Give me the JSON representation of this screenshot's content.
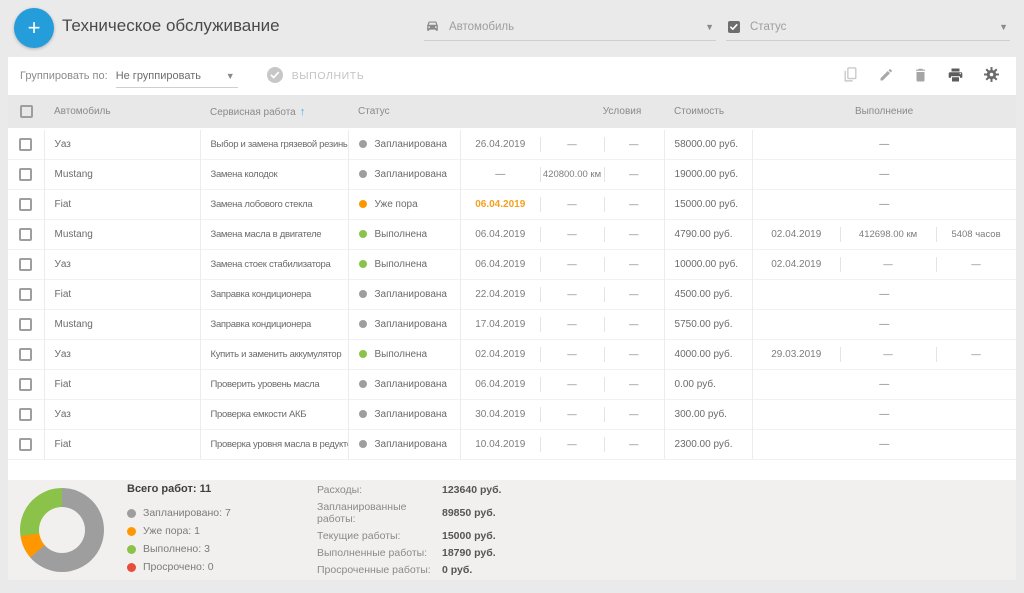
{
  "colors": {
    "accent_blue": "#259ddb",
    "sort_arrow_blue": "#42aee3",
    "status_dots": {
      "planned": "#9e9e9e",
      "due": "#ff9800",
      "done": "#8bc34a",
      "overdue": "#e74c3c"
    },
    "due_date_text": "#f5a01e",
    "footer_bg": "#f1f0ef"
  },
  "header": {
    "title": "Техническое обслуживание",
    "add_icon": "+",
    "filters": {
      "vehicle_placeholder": "Автомобиль",
      "status_placeholder": "Статус"
    }
  },
  "toolbar": {
    "group_by_label": "Группировать по:",
    "group_by_value": "Не группировать",
    "execute_label": "ВЫПОЛНИТЬ",
    "action_icons": [
      "copy-icon",
      "edit-pencil-icon",
      "delete-trash-icon",
      "print-icon",
      "settings-gear-icon"
    ]
  },
  "table": {
    "empty_value": "—",
    "headers": {
      "vehicle": "Автомобиль",
      "service_work": "Сервисная работа",
      "sort_icon": "↑",
      "status": "Статус",
      "conditions": "Условия",
      "cost": "Стоимость",
      "execution": "Выполнение"
    },
    "rows": [
      {
        "vehicle": "Уаз",
        "work": "Выбор и замена грязевой резины",
        "status": "Запланирована",
        "status_key": "planned",
        "cond_date": "26.04.2019",
        "cond_date_due": false,
        "cond_km": "—",
        "cond_hours": "—",
        "cost": "58000.00 руб.",
        "exec": null
      },
      {
        "vehicle": "Mustang",
        "work": "Замена колодок",
        "status": "Запланирована",
        "status_key": "planned",
        "cond_date": "—",
        "cond_date_due": false,
        "cond_km": "420800.00 км",
        "cond_hours": "—",
        "cost": "19000.00 руб.",
        "exec": null
      },
      {
        "vehicle": "Fiat",
        "work": "Замена лобового стекла",
        "status": "Уже пора",
        "status_key": "due",
        "cond_date": "06.04.2019",
        "cond_date_due": true,
        "cond_km": "—",
        "cond_hours": "—",
        "cost": "15000.00 руб.",
        "exec": null
      },
      {
        "vehicle": "Mustang",
        "work": "Замена масла в двигателе",
        "status": "Выполнена",
        "status_key": "done",
        "cond_date": "06.04.2019",
        "cond_date_due": false,
        "cond_km": "—",
        "cond_hours": "—",
        "cost": "4790.00 руб.",
        "exec": {
          "date": "02.04.2019",
          "km": "412698.00 км",
          "hours": "5408 часов"
        }
      },
      {
        "vehicle": "Уаз",
        "work": "Замена стоек стабилизатора",
        "status": "Выполнена",
        "status_key": "done",
        "cond_date": "06.04.2019",
        "cond_date_due": false,
        "cond_km": "—",
        "cond_hours": "—",
        "cost": "10000.00 руб.",
        "exec": {
          "date": "02.04.2019",
          "km": "—",
          "hours": "—"
        }
      },
      {
        "vehicle": "Fiat",
        "work": "Заправка кондиционера",
        "status": "Запланирована",
        "status_key": "planned",
        "cond_date": "22.04.2019",
        "cond_date_due": false,
        "cond_km": "—",
        "cond_hours": "—",
        "cost": "4500.00 руб.",
        "exec": null
      },
      {
        "vehicle": "Mustang",
        "work": "Заправка кондиционера",
        "status": "Запланирована",
        "status_key": "planned",
        "cond_date": "17.04.2019",
        "cond_date_due": false,
        "cond_km": "—",
        "cond_hours": "—",
        "cost": "5750.00 руб.",
        "exec": null
      },
      {
        "vehicle": "Уаз",
        "work": "Купить и заменить аккумулятор",
        "status": "Выполнена",
        "status_key": "done",
        "cond_date": "02.04.2019",
        "cond_date_due": false,
        "cond_km": "—",
        "cond_hours": "—",
        "cost": "4000.00 руб.",
        "exec": {
          "date": "29.03.2019",
          "km": "—",
          "hours": "—"
        }
      },
      {
        "vehicle": "Fiat",
        "work": "Проверить уровень масла",
        "status": "Запланирована",
        "status_key": "planned",
        "cond_date": "06.04.2019",
        "cond_date_due": false,
        "cond_km": "—",
        "cond_hours": "—",
        "cost": "0.00 руб.",
        "exec": null
      },
      {
        "vehicle": "Уаз",
        "work": "Проверка емкости АКБ",
        "status": "Запланирована",
        "status_key": "planned",
        "cond_date": "30.04.2019",
        "cond_date_due": false,
        "cond_km": "—",
        "cond_hours": "—",
        "cost": "300.00 руб.",
        "exec": null
      },
      {
        "vehicle": "Fiat",
        "work": "Проверка уровня масла в редукторе",
        "status": "Запланирована",
        "status_key": "planned",
        "cond_date": "10.04.2019",
        "cond_date_due": false,
        "cond_km": "—",
        "cond_hours": "—",
        "cost": "2300.00 руб.",
        "exec": null
      }
    ]
  },
  "summary": {
    "total_label": "Всего работ",
    "total_value": "11",
    "legend": [
      {
        "label": "Запланировано",
        "value": 7,
        "color": "#9e9e9e"
      },
      {
        "label": "Уже пора",
        "value": 1,
        "color": "#ff9800"
      },
      {
        "label": "Выполнено",
        "value": 3,
        "color": "#8bc34a"
      },
      {
        "label": "Просрочено",
        "value": 0,
        "color": "#e74c3c"
      }
    ],
    "stats": [
      {
        "label": "Расходы:",
        "value": "123640 руб."
      },
      {
        "label": "Запланированные работы:",
        "value": "89850 руб."
      },
      {
        "label": "Текущие работы:",
        "value": "15000 руб."
      },
      {
        "label": "Выполненные работы:",
        "value": "18790 руб."
      },
      {
        "label": "Просроченные работы:",
        "value": "0 руб."
      }
    ]
  },
  "chart_data": {
    "type": "pie",
    "donut": true,
    "title": "Всего работ: 11",
    "categories": [
      "Запланировано",
      "Уже пора",
      "Выполнено",
      "Просрочено"
    ],
    "values": [
      7,
      1,
      3,
      0
    ],
    "colors": [
      "#9e9e9e",
      "#ff9800",
      "#8bc34a",
      "#e74c3c"
    ],
    "total": 11,
    "legend_position": "right"
  }
}
